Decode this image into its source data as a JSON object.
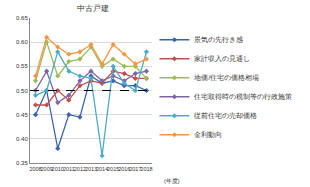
{
  "chart_data": {
    "type": "line",
    "title": "中古戸建",
    "xlabel": "(年度)",
    "categories": [
      "2008",
      "2009",
      "2010",
      "2011",
      "2012",
      "2013",
      "2014",
      "2015",
      "2016",
      "2017",
      "2018"
    ],
    "series": [
      {
        "name": "景気の先行き感",
        "color": "#3a63ad",
        "values": [
          0.45,
          0.5,
          0.38,
          0.45,
          0.445,
          0.53,
          0.515,
          0.52,
          0.51,
          0.51,
          0.5
        ]
      },
      {
        "name": "家計収入の見通し",
        "color": "#c0504d",
        "values": [
          0.47,
          0.47,
          0.5,
          0.48,
          0.51,
          0.52,
          0.515,
          0.54,
          0.535,
          0.525,
          0.525
        ]
      },
      {
        "name": "地価/住宅の価格相場",
        "color": "#9bbb59",
        "values": [
          0.52,
          0.6,
          0.53,
          0.56,
          0.565,
          0.59,
          0.55,
          0.565,
          0.55,
          0.55,
          0.525
        ]
      },
      {
        "name": "住宅取得時の税制等の行政施策",
        "color": "#8064a2",
        "values": [
          0.5,
          0.54,
          0.475,
          0.49,
          0.52,
          0.54,
          0.52,
          0.53,
          0.52,
          0.535,
          0.54
        ]
      },
      {
        "name": "従前住宅の売却価格",
        "color": "#4bacc6",
        "values": [
          0.49,
          0.5,
          0.58,
          0.54,
          0.53,
          0.525,
          0.365,
          0.55,
          0.515,
          0.5,
          0.58
        ]
      },
      {
        "name": "金利動向",
        "color": "#f79646",
        "values": [
          0.53,
          0.61,
          0.59,
          0.575,
          0.58,
          0.595,
          0.555,
          0.595,
          0.575,
          0.555,
          0.565
        ]
      }
    ],
    "ylim": [
      0.35,
      0.65
    ],
    "yticks": [
      0.35,
      {
        "value": 0.4,
        "label": "0.40"
      },
      0.45,
      {
        "value": 0.5,
        "label": "0.50"
      },
      0.55,
      {
        "value": 0.6,
        "label": "0.60"
      },
      0.65
    ],
    "reference_line": {
      "value": 0.5
    },
    "grid": true,
    "legend": "right",
    "marker": "diamond",
    "line_style": "solid"
  }
}
